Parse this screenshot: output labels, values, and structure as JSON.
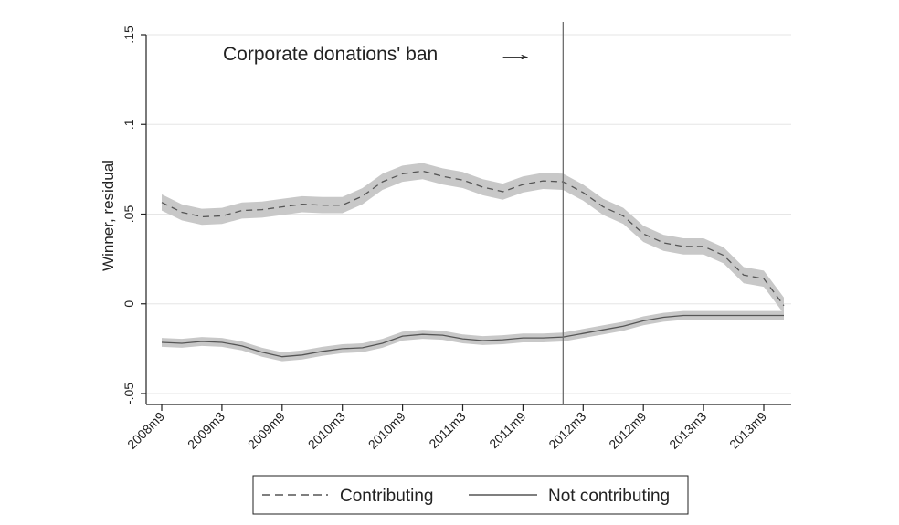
{
  "chart_data": {
    "type": "line",
    "title": "",
    "xlabel": "",
    "ylabel": "Winner, residual",
    "ylim": [
      -0.05,
      0.15
    ],
    "yticks": [
      -0.05,
      0,
      0.05,
      0.1,
      0.15
    ],
    "ytick_labels": [
      "-.05",
      "0",
      ".05",
      ".1",
      ".15"
    ],
    "x_tick_labels": [
      "2008m9",
      "2009m3",
      "2009m9",
      "2010m3",
      "2010m9",
      "2011m3",
      "2011m9",
      "2012m3",
      "2012m9",
      "2013m3",
      "2013m9"
    ],
    "x_tick_positions": [
      0,
      6,
      12,
      18,
      24,
      30,
      36,
      42,
      48,
      54,
      60
    ],
    "xlim": [
      -0.5,
      63
    ],
    "grid": true,
    "legend_placement": "bottom",
    "annotation": {
      "text": "Corporate donations' ban",
      "arrow": "→",
      "x": 40
    },
    "vline_x": 40,
    "x": [
      0,
      2,
      4,
      6,
      8,
      10,
      12,
      14,
      16,
      18,
      20,
      22,
      24,
      26,
      28,
      30,
      32,
      34,
      36,
      38,
      40,
      42,
      44,
      46,
      48,
      50,
      52,
      54,
      56,
      58,
      60,
      62
    ],
    "series": [
      {
        "name": "Contributing",
        "style": "dashed",
        "values": [
          0.0565,
          0.051,
          0.0485,
          0.049,
          0.052,
          0.0525,
          0.054,
          0.0555,
          0.055,
          0.055,
          0.06,
          0.068,
          0.0725,
          0.074,
          0.071,
          0.069,
          0.065,
          0.0625,
          0.0665,
          0.0685,
          0.068,
          0.062,
          0.054,
          0.049,
          0.039,
          0.034,
          0.032,
          0.032,
          0.027,
          0.016,
          0.014,
          -0.001
        ],
        "band": 0.0045
      },
      {
        "name": "Not contributing",
        "style": "solid",
        "values": [
          -0.0215,
          -0.022,
          -0.021,
          -0.0215,
          -0.0235,
          -0.027,
          -0.0295,
          -0.0285,
          -0.0265,
          -0.025,
          -0.0245,
          -0.022,
          -0.018,
          -0.017,
          -0.0175,
          -0.0195,
          -0.0205,
          -0.02,
          -0.019,
          -0.019,
          -0.0185,
          -0.0165,
          -0.0145,
          -0.0125,
          -0.0095,
          -0.0075,
          -0.0065,
          -0.0065,
          -0.0065,
          -0.0065,
          -0.0065,
          -0.0065
        ],
        "band": 0.0025
      }
    ],
    "colors": {
      "line": "#555555",
      "band": "#c8c8c8",
      "grid": "#e6e6e6",
      "axis": "#222222"
    }
  }
}
